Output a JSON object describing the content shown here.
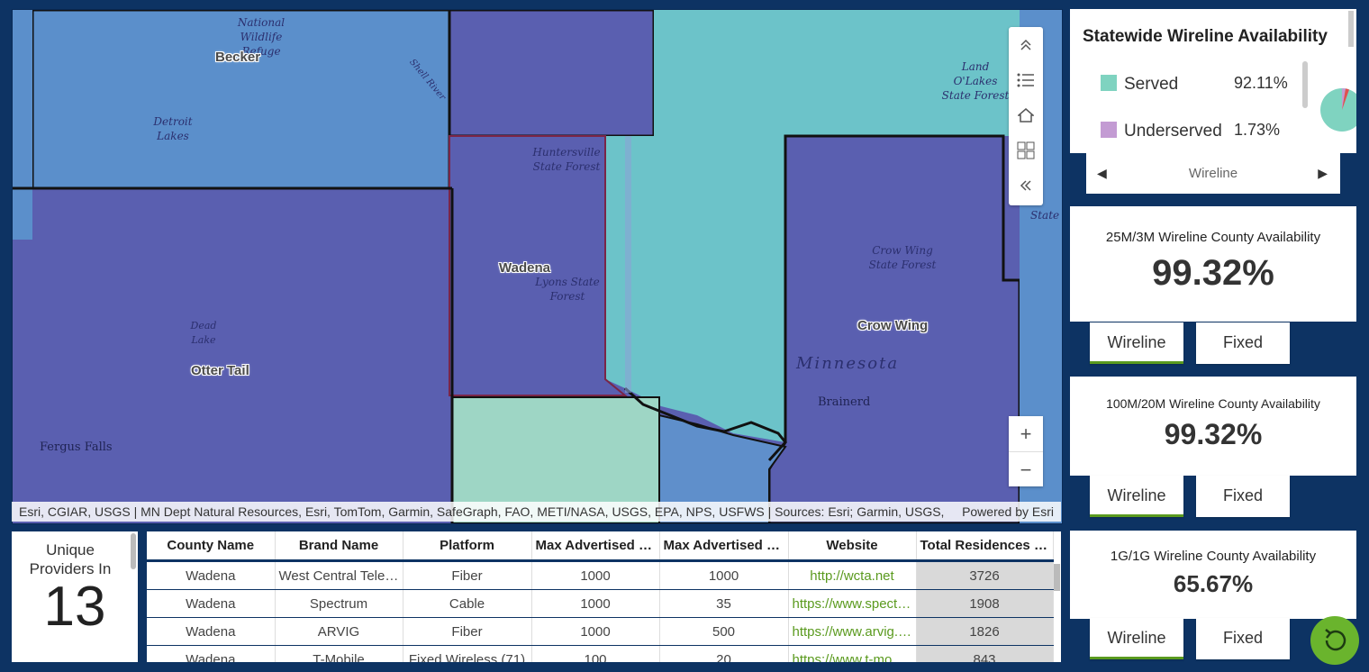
{
  "map": {
    "counties": {
      "becker": "Becker",
      "otter_tail": "Otter Tail",
      "wadena": "Wadena",
      "crow_wing": "Crow Wing"
    },
    "places": {
      "national_wildlife_refuge": "National Wildlife Refuge",
      "detroit_lakes": "Detroit Lakes",
      "shell_river": "Shell River",
      "huntersville": "Huntersville State Forest",
      "lyons": "Lyons State Forest",
      "dead_lake": "Dead Lake",
      "fergus_falls": "Fergus Falls",
      "land_o_lakes": "Land O'Lakes State Forest",
      "crow_wing_sf": "Crow Wing State Forest",
      "minnesota": "Minnesota",
      "brainerd": "Brainerd",
      "state_partial": "State"
    },
    "attribution": "Esri, CGIAR, USGS | MN Dept Natural Resources, Esri, TomTom, Garmin, SafeGraph, FAO, METI/NASA, USGS, EPA, NPS, USFWS | Sources: Esri; Garmin, USGS, NPS",
    "powered_by": "Powered by Esri",
    "tools": [
      "collapse-up-icon",
      "legend-list-icon",
      "home-icon",
      "basemap-gallery-icon",
      "collapse-left-icon"
    ],
    "zoom_in": "+",
    "zoom_out": "−"
  },
  "providers": {
    "title": "Unique Providers In",
    "count": "13"
  },
  "table": {
    "headers": [
      "County Name",
      "Brand Name",
      "Platform",
      "Max Advertised Download Speed",
      "Max Advertised Upload Speed",
      "Website",
      "Total Residences Served"
    ],
    "rows": [
      [
        "Wadena",
        "West Central Telephone",
        "Fiber",
        "1000",
        "1000",
        "http://wcta.net",
        "3726"
      ],
      [
        "Wadena",
        "Spectrum",
        "Cable",
        "1000",
        "35",
        "https://www.spectrum.com",
        "1908"
      ],
      [
        "Wadena",
        "ARVIG",
        "Fiber",
        "1000",
        "500",
        "https://www.arvig.com",
        "1826"
      ],
      [
        "Wadena",
        "T-Mobile",
        "Fixed Wireless (71)",
        "100",
        "20",
        "https://www.t-mobile.com",
        "843"
      ]
    ]
  },
  "statewide": {
    "title": "Statewide Wireline Availability",
    "legend": [
      {
        "label": "Served",
        "pct": "92.11%",
        "color": "#7fd3c0"
      },
      {
        "label": "Underserved",
        "pct": "1.73%",
        "color": "#c39bd3"
      }
    ],
    "nav_label": "Wireline"
  },
  "cards": [
    {
      "title": "25M/3M Wireline County Availability",
      "value": "99.32%"
    },
    {
      "title": "100M/20M Wireline County Availability",
      "value": "99.32%"
    },
    {
      "title": "1G/1G Wireline County Availability",
      "value": "65.67%"
    }
  ],
  "tabs": {
    "wireline": "Wireline",
    "fixed": "Fixed"
  },
  "colors": {
    "accent": "#5a9a1e",
    "background": "#0d3363",
    "served": "#7fd3c0",
    "underserved_dark": "#5a5fb0"
  }
}
